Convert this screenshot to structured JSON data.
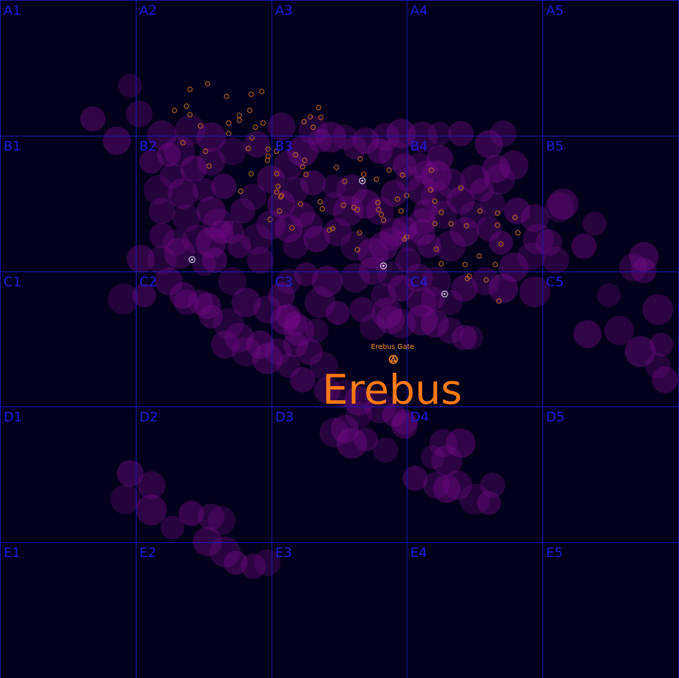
{
  "map": {
    "region_name": "Erebus",
    "gate_label": "Erebus Gate",
    "grid": {
      "rows": [
        "A",
        "B",
        "C",
        "D",
        "E"
      ],
      "cols": [
        "1",
        "2",
        "3",
        "4",
        "5"
      ],
      "labels": [
        "A1",
        "A2",
        "A3",
        "A4",
        "A5",
        "B1",
        "B2",
        "B3",
        "B4",
        "B5",
        "C1",
        "C2",
        "C3",
        "C4",
        "C5",
        "D1",
        "D2",
        "D3",
        "D4",
        "D5",
        "E1",
        "E2",
        "E3",
        "E4",
        "E5"
      ]
    },
    "colors": {
      "background": "#02001c",
      "grid_line": "#1818b8",
      "grid_label": "#1d1dd6",
      "cloud": "#7a0a8c",
      "system_marker": "#d06a1e",
      "station_marker": "#e8e8f0",
      "region_label": "#ff7a12",
      "gate": "#ff8c1a"
    },
    "icons": {
      "gate": "gate-icon",
      "station": "station-icon",
      "system": "system-icon",
      "cloud": "nebula-cloud"
    }
  }
}
